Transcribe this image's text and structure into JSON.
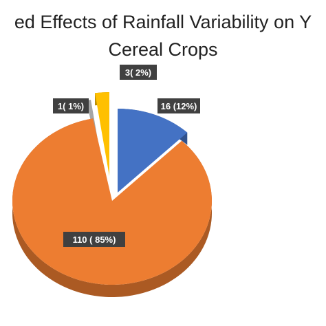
{
  "chart_data": {
    "type": "pie",
    "title": "Perceived Effects of Rainfall Variability on Yield of Cereal Crops",
    "title_visible_lines": [
      "ed Effects of Rainfall Variability on Y",
      "Cereal Crops"
    ],
    "style": "3d-exploded",
    "slices": [
      {
        "value": 16,
        "percent": 12,
        "label": "16 (12%)",
        "color": "#4472C4"
      },
      {
        "value": 110,
        "percent": 85,
        "label": "110 ( 85%)",
        "color": "#ED7D31"
      },
      {
        "value": 1,
        "percent": 1,
        "label": "1( 1%)",
        "color": "#A5A5A5"
      },
      {
        "value": 3,
        "percent": 2,
        "label": "3( 2%)",
        "color": "#FFC000"
      }
    ],
    "legend": "none"
  }
}
